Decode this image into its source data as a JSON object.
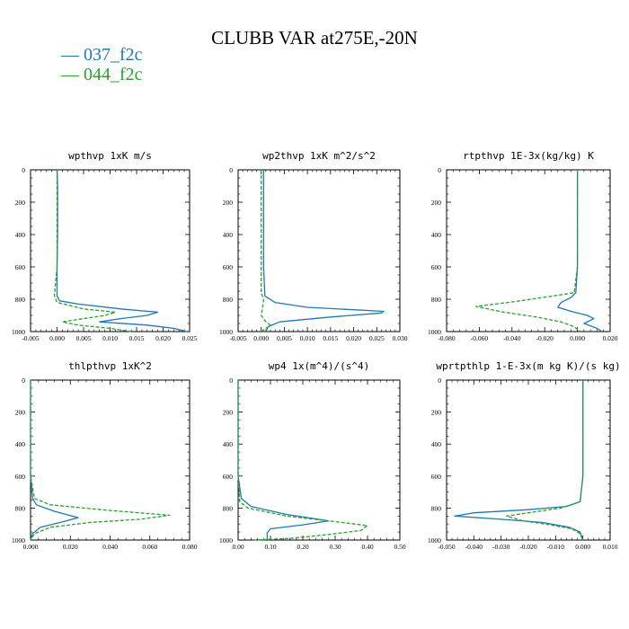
{
  "figure": {
    "title": "CLUBB VAR at275E,-20N"
  },
  "legend": [
    {
      "label": "037_f2c",
      "color": "#1f77b4",
      "dash": "solid"
    },
    {
      "label": "044_f2c",
      "color": "#2ca02c",
      "dash": "dashed"
    }
  ],
  "chart_data": [
    {
      "type": "line",
      "title": "wpthvp  1xK m/s",
      "xlim": [
        -0.005,
        0.025
      ],
      "ylim": [
        1000,
        0
      ],
      "xticks": [
        "-0.005",
        "0.000",
        "0.005",
        "0.010",
        "0.015",
        "0.020",
        "0.025"
      ],
      "yticks": [
        "0",
        "200",
        "400",
        "600",
        "800",
        "1000"
      ],
      "series": [
        {
          "name": "037_f2c",
          "color": "#1f77b4",
          "dash": "solid",
          "x": [
            0.0,
            0.0001,
            0.0001,
            0.0001,
            0.0,
            0.0,
            0.0005,
            0.004,
            0.012,
            0.019,
            0.017,
            0.012,
            0.008,
            0.017,
            0.022,
            0.0245
          ],
          "y": [
            0,
            100,
            200,
            400,
            600,
            780,
            810,
            830,
            860,
            880,
            900,
            920,
            940,
            960,
            980,
            1000
          ]
        },
        {
          "name": "044_f2c",
          "color": "#2ca02c",
          "dash": "dashed",
          "x": [
            0.0,
            0.0,
            0.0,
            0.0,
            0.0,
            -0.0005,
            0.0,
            0.005,
            0.011,
            0.009,
            0.005,
            0.001,
            0.004,
            0.01,
            0.014
          ],
          "y": [
            0,
            100,
            200,
            400,
            600,
            780,
            820,
            860,
            880,
            900,
            920,
            940,
            960,
            980,
            1000
          ]
        }
      ]
    },
    {
      "type": "line",
      "title": "wp2thvp  1xK m^2/s^2",
      "xlim": [
        -0.005,
        0.03
      ],
      "ylim": [
        1000,
        0
      ],
      "xticks": [
        "-0.005",
        "0.000",
        "0.005",
        "0.010",
        "0.015",
        "0.020",
        "0.025",
        "0.030"
      ],
      "yticks": [
        "0",
        "200",
        "400",
        "600",
        "800",
        "1000"
      ],
      "series": [
        {
          "name": "037_f2c",
          "color": "#1f77b4",
          "dash": "solid",
          "x": [
            0.0005,
            0.0005,
            0.0005,
            0.0005,
            0.0005,
            0.0008,
            0.003,
            0.01,
            0.02,
            0.0265,
            0.026,
            0.015,
            0.004,
            0.0015,
            0.001
          ],
          "y": [
            0,
            100,
            200,
            400,
            600,
            780,
            820,
            850,
            865,
            875,
            885,
            910,
            940,
            970,
            1000
          ]
        },
        {
          "name": "044_f2c",
          "color": "#2ca02c",
          "dash": "dashed",
          "x": [
            0.0,
            0.0,
            0.0,
            0.0,
            0.0,
            0.0,
            0.0005,
            0.0003,
            0.0,
            0.001,
            0.002,
            0.0
          ],
          "y": [
            0,
            100,
            200,
            400,
            600,
            760,
            800,
            850,
            900,
            940,
            960,
            1000
          ]
        }
      ]
    },
    {
      "type": "line",
      "title": "rtpthvp  1E-3x(kg/kg) K",
      "xlim": [
        -0.08,
        0.02
      ],
      "ylim": [
        1000,
        0
      ],
      "xticks": [
        "-0.080",
        "-0.060",
        "-0.040",
        "-0.020",
        "0.000",
        "0.020"
      ],
      "yticks": [
        "0",
        "200",
        "400",
        "600",
        "800",
        "1000"
      ],
      "series": [
        {
          "name": "037_f2c",
          "color": "#1f77b4",
          "dash": "solid",
          "x": [
            0.0,
            0.0,
            0.0,
            0.0,
            0.0,
            -0.001,
            -0.004,
            -0.01,
            -0.012,
            -0.002,
            0.006,
            0.01,
            0.004,
            0.012,
            0.015
          ],
          "y": [
            0,
            100,
            200,
            400,
            600,
            760,
            790,
            820,
            850,
            880,
            900,
            920,
            950,
            980,
            1000
          ]
        },
        {
          "name": "044_f2c",
          "color": "#2ca02c",
          "dash": "dashed",
          "x": [
            0.0,
            0.0,
            0.0,
            0.0,
            0.0,
            -0.002,
            -0.015,
            -0.035,
            -0.062,
            -0.045,
            -0.025,
            -0.01,
            -0.002,
            0.002
          ],
          "y": [
            0,
            100,
            200,
            400,
            600,
            760,
            780,
            810,
            845,
            880,
            910,
            940,
            970,
            1000
          ]
        }
      ]
    },
    {
      "type": "line",
      "title": "thlpthvp  1xK^2",
      "xlim": [
        0.0,
        0.08
      ],
      "ylim": [
        1000,
        0
      ],
      "xticks": [
        "0.000",
        "0.020",
        "0.040",
        "0.060",
        "0.080"
      ],
      "yticks": [
        "0",
        "200",
        "400",
        "600",
        "800",
        "1000"
      ],
      "series": [
        {
          "name": "037_f2c",
          "color": "#1f77b4",
          "dash": "solid",
          "x": [
            0.0,
            0.0,
            0.0,
            0.0,
            0.0,
            0.001,
            0.003,
            0.012,
            0.024,
            0.015,
            0.005,
            0.001,
            0.0
          ],
          "y": [
            0,
            100,
            200,
            400,
            600,
            740,
            780,
            820,
            860,
            890,
            920,
            960,
            1000
          ]
        },
        {
          "name": "044_f2c",
          "color": "#2ca02c",
          "dash": "dashed",
          "x": [
            0.0,
            0.0,
            0.0,
            0.0,
            0.0,
            0.002,
            0.01,
            0.04,
            0.07,
            0.055,
            0.03,
            0.01,
            0.002,
            0.0
          ],
          "y": [
            0,
            100,
            200,
            400,
            600,
            740,
            780,
            815,
            845,
            870,
            890,
            920,
            960,
            1000
          ]
        }
      ]
    },
    {
      "type": "line",
      "title": "wp4  1x(m^4)/(s^4)",
      "xlim": [
        0.0,
        0.5
      ],
      "ylim": [
        1000,
        0
      ],
      "xticks": [
        "0.00",
        "0.10",
        "0.20",
        "0.30",
        "0.40",
        "0.50"
      ],
      "yticks": [
        "0",
        "200",
        "400",
        "600",
        "800",
        "1000"
      ],
      "series": [
        {
          "name": "037_f2c",
          "color": "#1f77b4",
          "dash": "solid",
          "x": [
            0.0,
            0.0,
            0.0,
            0.0,
            0.0,
            0.01,
            0.04,
            0.15,
            0.28,
            0.2,
            0.1,
            0.09,
            0.09,
            0.09
          ],
          "y": [
            0,
            100,
            200,
            400,
            600,
            740,
            790,
            840,
            880,
            905,
            930,
            955,
            980,
            1000
          ]
        },
        {
          "name": "044_f2c",
          "color": "#2ca02c",
          "dash": "dashed",
          "x": [
            0.0,
            0.0,
            0.0,
            0.0,
            0.0,
            0.005,
            0.03,
            0.15,
            0.32,
            0.4,
            0.38,
            0.28,
            0.16,
            0.05
          ],
          "y": [
            0,
            100,
            200,
            400,
            600,
            760,
            800,
            850,
            890,
            910,
            940,
            965,
            990,
            1000
          ]
        }
      ]
    },
    {
      "type": "line",
      "title": "wprtpthlp  1-E-3x(m kg K)/(s kg)",
      "xlim": [
        -0.05,
        0.01
      ],
      "ylim": [
        1000,
        0
      ],
      "xticks": [
        "-0.050",
        "-0.040",
        "-0.030",
        "-0.020",
        "-0.010",
        "0.000",
        "0.010"
      ],
      "yticks": [
        "0",
        "200",
        "400",
        "600",
        "800",
        "1000"
      ],
      "series": [
        {
          "name": "037_f2c",
          "color": "#1f77b4",
          "dash": "solid",
          "x": [
            0.0,
            0.0,
            0.0,
            0.0,
            0.0,
            -0.001,
            -0.006,
            -0.02,
            -0.04,
            -0.047,
            -0.03,
            -0.015,
            -0.005,
            -0.001,
            0.0
          ],
          "y": [
            0,
            100,
            200,
            400,
            600,
            760,
            790,
            810,
            830,
            850,
            870,
            890,
            920,
            950,
            1000
          ]
        },
        {
          "name": "044_f2c",
          "color": "#2ca02c",
          "dash": "dashed",
          "x": [
            0.0,
            0.0,
            0.0,
            0.0,
            0.0,
            -0.001,
            -0.008,
            -0.02,
            -0.028,
            -0.022,
            -0.012,
            -0.004,
            -0.001,
            0.0
          ],
          "y": [
            0,
            100,
            200,
            400,
            600,
            760,
            800,
            830,
            850,
            880,
            905,
            930,
            960,
            1000
          ]
        }
      ]
    }
  ]
}
